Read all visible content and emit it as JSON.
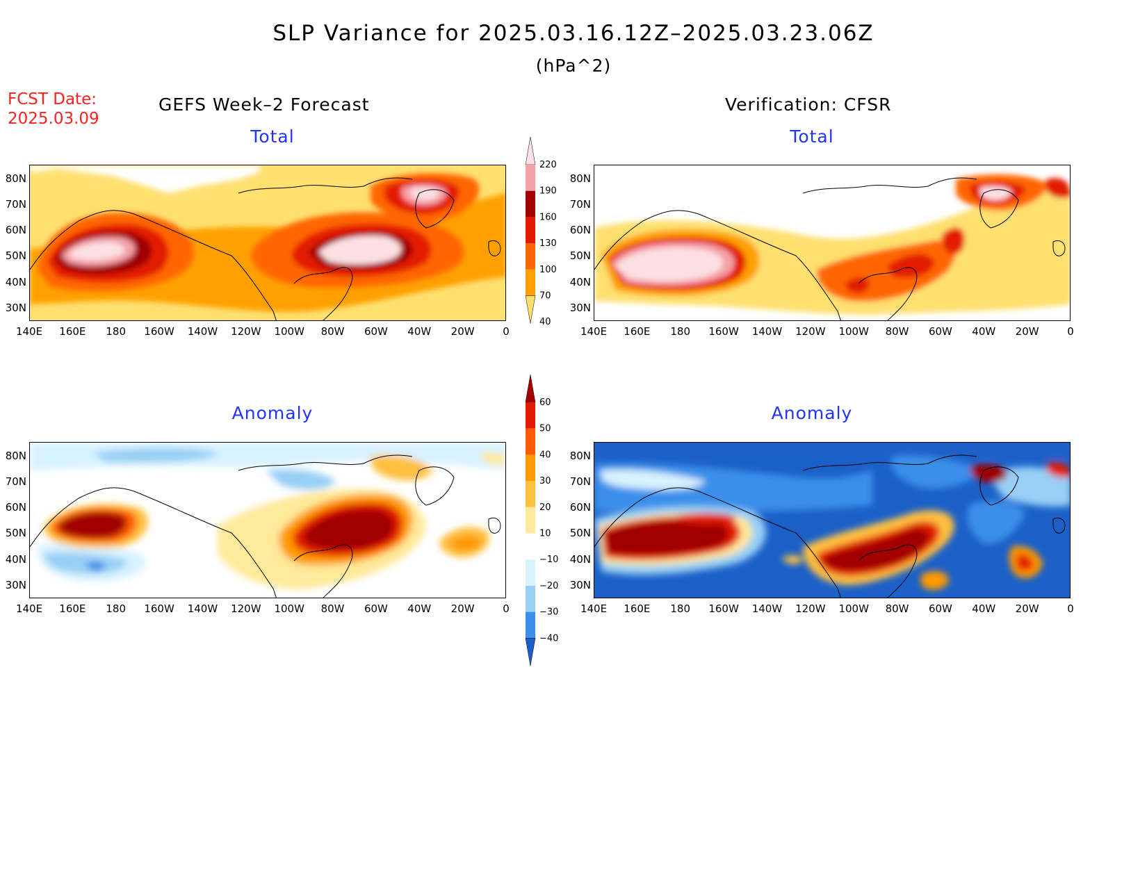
{
  "title": "SLP Variance for 2025.03.16.12Z–2025.03.23.06Z",
  "units": "(hPa^2)",
  "fcst_date": {
    "label": "FCST Date:",
    "value": "2025.03.09"
  },
  "left_header": "GEFS Week–2 Forecast",
  "right_header": "Verification: CFSR",
  "panels": {
    "tl": {
      "subtitle": "Total"
    },
    "tr": {
      "subtitle": "Total"
    },
    "bl": {
      "subtitle": "Anomaly"
    },
    "br": {
      "subtitle": "Anomaly"
    }
  },
  "axes": {
    "lat_labels": [
      "80N",
      "70N",
      "60N",
      "50N",
      "40N",
      "30N"
    ],
    "lon_labels": [
      "140E",
      "160E",
      "180",
      "160W",
      "140W",
      "120W",
      "100W",
      "80W",
      "60W",
      "40W",
      "20W",
      "0"
    ],
    "lon_range": [
      "140E",
      "0"
    ],
    "lat_range": [
      "25N",
      "85N"
    ]
  },
  "total_colorbar": {
    "levels": [
      "220",
      "190",
      "160",
      "130",
      "100",
      "70",
      "40"
    ],
    "colors": [
      "#fde0e3",
      "#f4a0a8",
      "#a00000",
      "#e31a00",
      "#ff6600",
      "#ffa000",
      "#ffe070"
    ]
  },
  "anomaly_colorbar": {
    "levels": [
      "60",
      "50",
      "40",
      "30",
      "20",
      "10",
      "−10",
      "−20",
      "−30",
      "−40"
    ],
    "colors": [
      "#a00000",
      "#e31a00",
      "#ff5a00",
      "#ff9a00",
      "#ffc040",
      "#ffe99a",
      "#ffffff",
      "#d8f2ff",
      "#98cff5",
      "#3a8fea",
      "#1a60c8"
    ]
  }
}
